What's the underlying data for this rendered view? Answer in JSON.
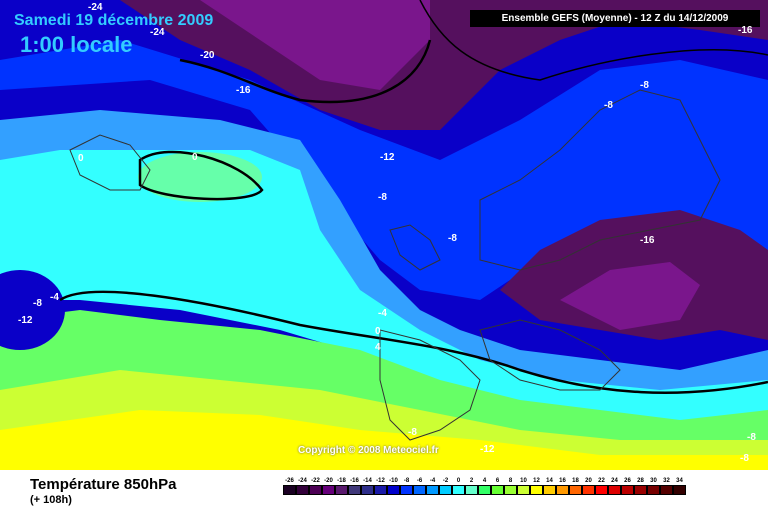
{
  "map": {
    "date_label": "Samedi 19 décembre 2009",
    "time_label": "1:00 locale",
    "header": "Ensemble GEFS (Moyenne)  - 12 Z du 14/12/2009",
    "copyright": "Copyright © 2008 Meteociel.fr",
    "contour_labels": [
      "-24",
      "-24",
      "-20",
      "-16",
      "-16",
      "-12",
      "-12",
      "-8",
      "-8",
      "-8",
      "-8",
      "-8",
      "-8",
      "-4",
      "-4",
      "0",
      "0",
      "0",
      "-16",
      "-12",
      "4",
      "-8",
      "-8"
    ],
    "colors": {
      "purple_dark": "#55105e",
      "purple": "#7a168c",
      "deep_blue": "#0a00c8",
      "blue": "#0033ff",
      "light_blue": "#33a0ff",
      "cyan": "#33ffff",
      "mint": "#66ffaa",
      "green": "#66ff66",
      "yellow_green": "#ccff33",
      "yellow": "#ffff00"
    }
  },
  "footer": {
    "title": "Température 850hPa",
    "subtitle": "(+ 108h)"
  },
  "legend": {
    "ticks": [
      "-26",
      "-24",
      "-22",
      "-20",
      "-18",
      "-16",
      "-14",
      "-12",
      "-10",
      "-8",
      "-6",
      "-4",
      "-2",
      "0",
      "2",
      "4",
      "6",
      "8",
      "10",
      "12",
      "14",
      "16",
      "18",
      "20",
      "22",
      "24",
      "26",
      "28",
      "30",
      "32",
      "34"
    ],
    "colors": [
      "#1a0022",
      "#33003a",
      "#4d0055",
      "#66007a",
      "#5a1a6e",
      "#40387a",
      "#2e2e8a",
      "#1a1aa8",
      "#0000cc",
      "#0033ff",
      "#0066ff",
      "#0099ff",
      "#00ccff",
      "#33ffff",
      "#66ffcc",
      "#33ff66",
      "#66ff33",
      "#99ff33",
      "#ccff33",
      "#ffff00",
      "#ffcc00",
      "#ff9900",
      "#ff6600",
      "#ff3300",
      "#ff0000",
      "#dd0000",
      "#bb0000",
      "#990000",
      "#770000",
      "#550000",
      "#330000"
    ]
  }
}
